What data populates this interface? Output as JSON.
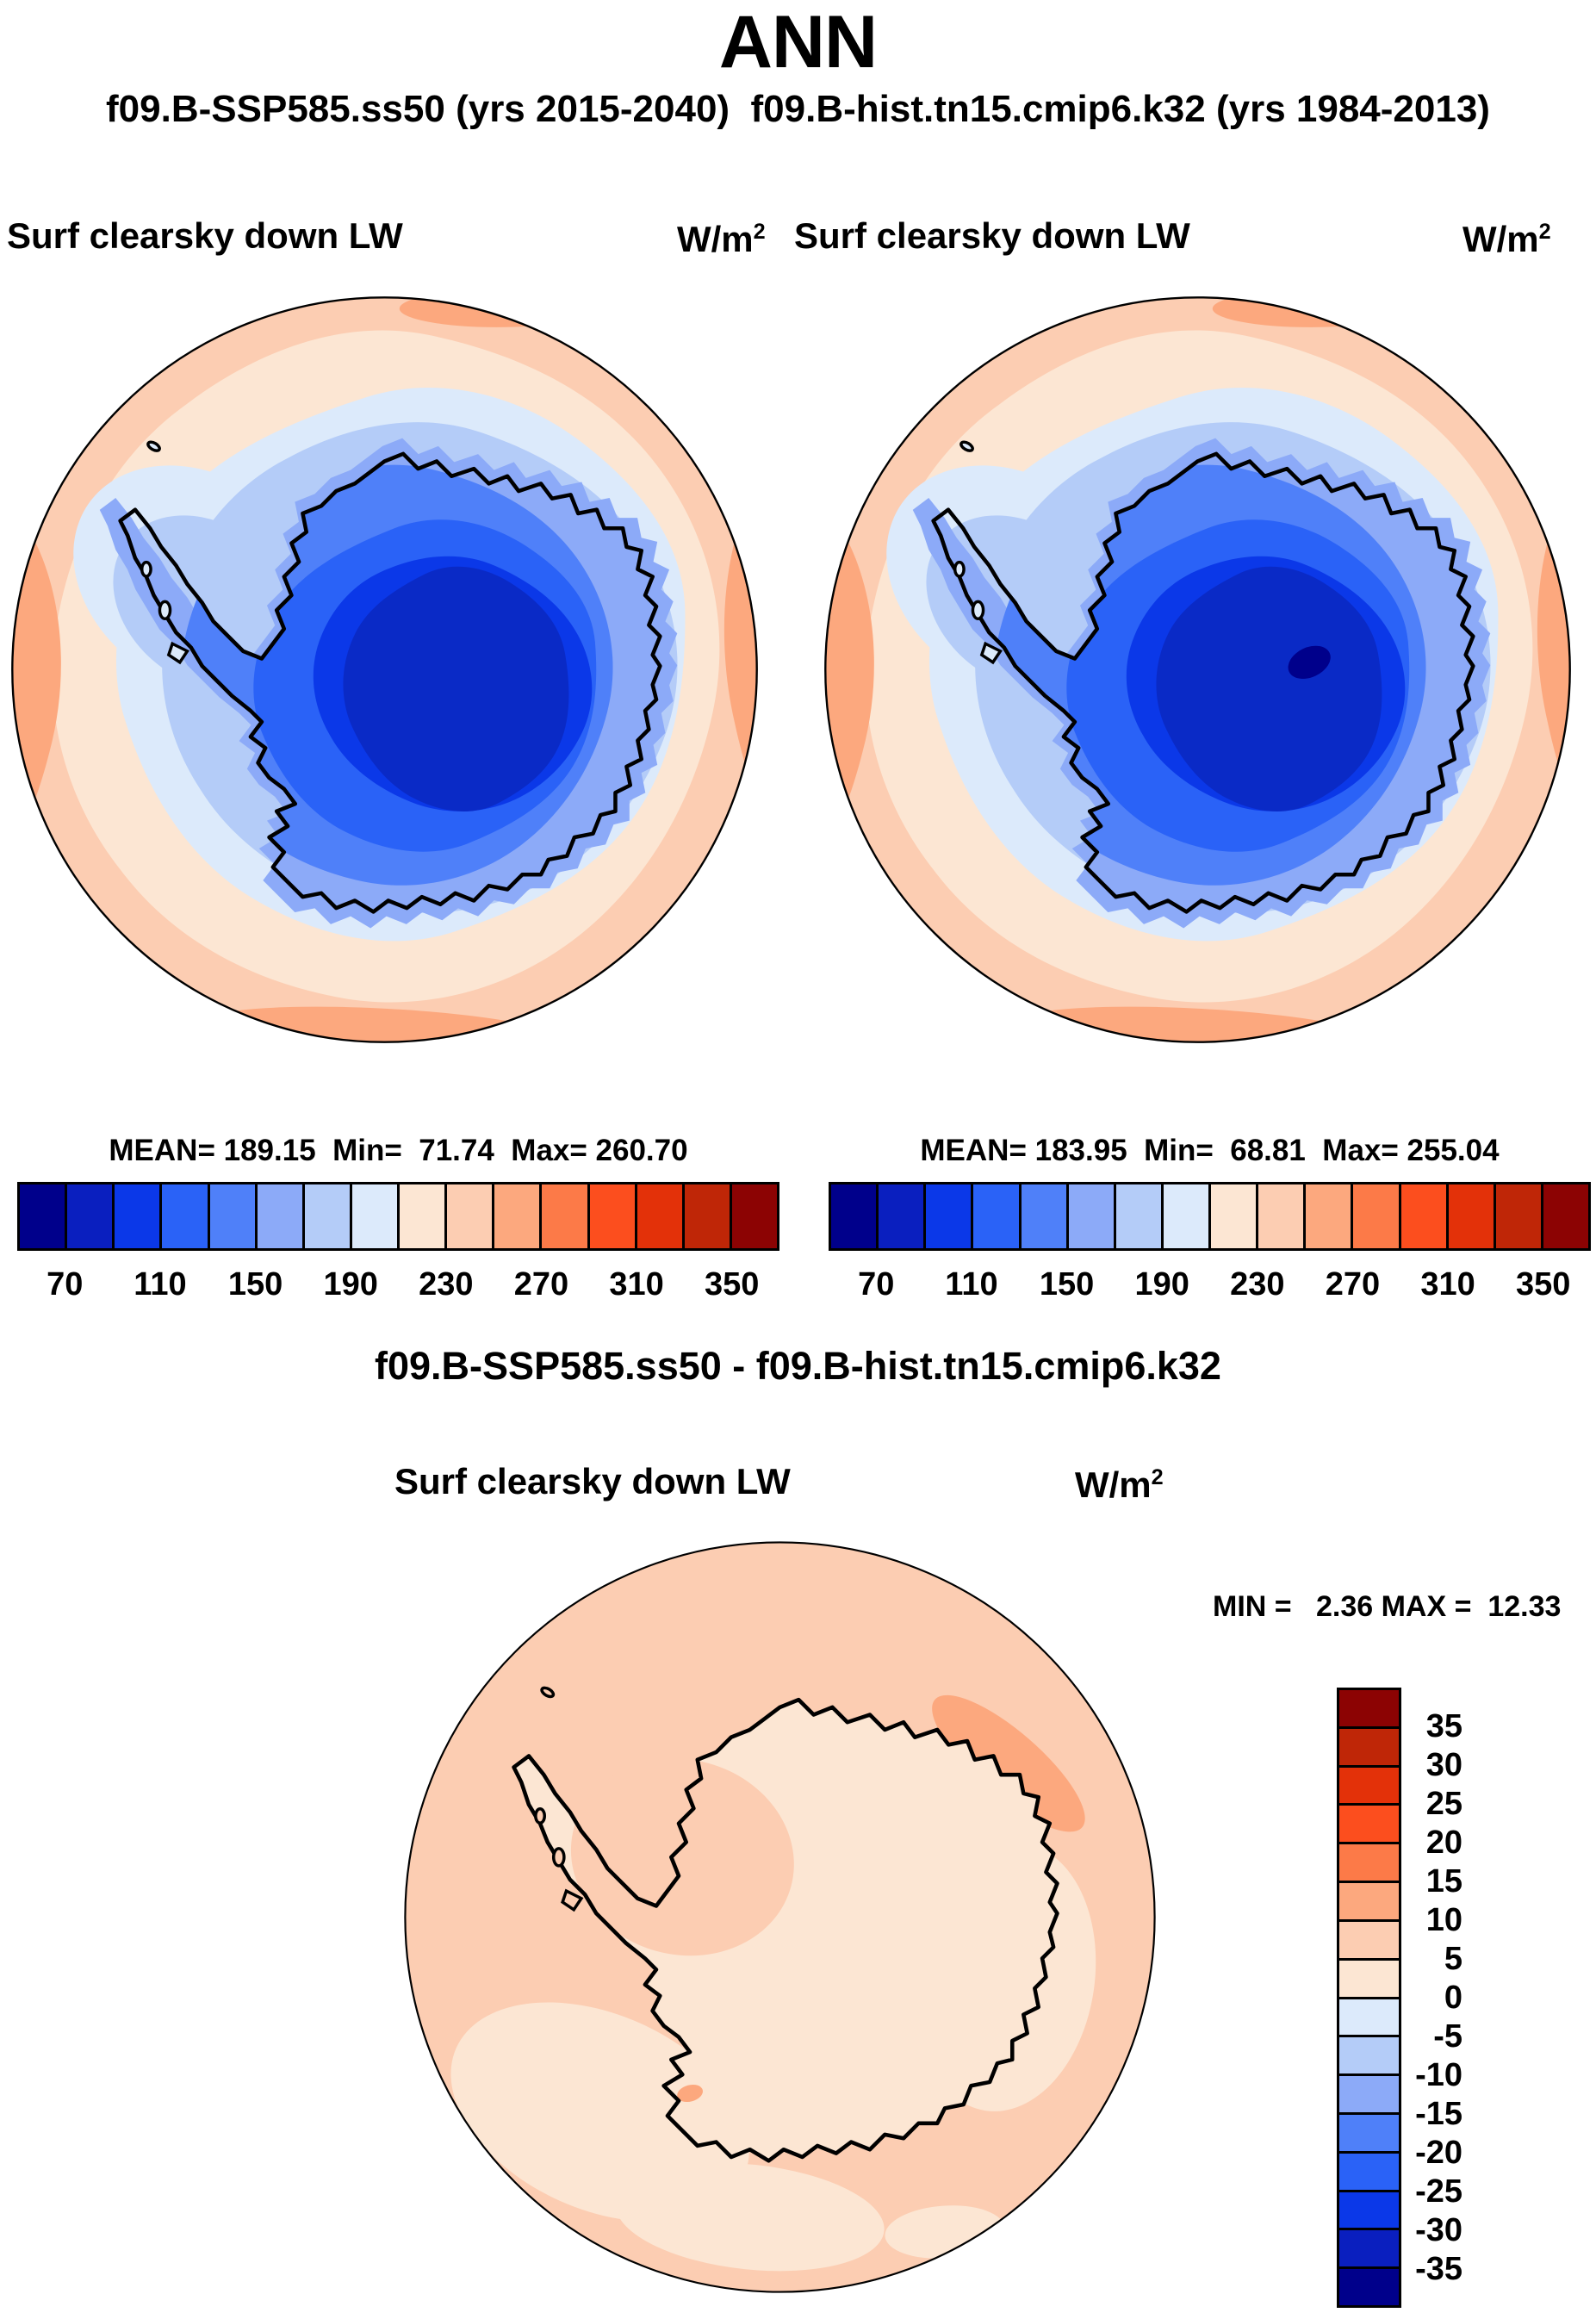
{
  "header": {
    "season": "ANN",
    "cases_line": "f09.B-SSP585.ss50 (yrs 2015-2040)  f09.B-hist.tn15.cmip6.k32 (yrs 1984-2013)"
  },
  "palette": {
    "colors": [
      "#00008B",
      "#0A1FBF",
      "#0B38E8",
      "#2A62F7",
      "#4F80F9",
      "#8CAAF8",
      "#B4CCF8",
      "#DCEAFB",
      "#FCE6D3",
      "#FCCDB2",
      "#FCA87E",
      "#FC7A48",
      "#FC4E1E",
      "#E33109",
      "#BF2607",
      "#8C0303"
    ]
  },
  "top_panels": [
    {
      "var_label": "Surf clearsky down LW",
      "units_base": "W/m",
      "units_exp": "2",
      "stats_line": "MEAN= 189.15  Min=  71.74  Max= 260.70"
    },
    {
      "var_label": "Surf clearsky down LW",
      "units_base": "W/m",
      "units_exp": "2",
      "stats_line": "MEAN= 183.95  Min=  68.81  Max= 255.04"
    }
  ],
  "top_colorbar": {
    "ticks": [
      "70",
      "110",
      "150",
      "190",
      "230",
      "270",
      "310",
      "350"
    ]
  },
  "diff_panel": {
    "title": "f09.B-SSP585.ss50 - f09.B-hist.tn15.cmip6.k32",
    "var_label": "Surf clearsky down LW",
    "units_base": "W/m",
    "units_exp": "2",
    "minmax_line": "MIN =   2.36 MAX =  12.33",
    "colorbar_labels": [
      "35",
      "30",
      "25",
      "20",
      "15",
      "10",
      "5",
      "0",
      "-5",
      "-10",
      "-15",
      "-20",
      "-25",
      "-30",
      "-35"
    ]
  },
  "chart_data": [
    {
      "type": "heatmap",
      "subtype": "south-polar-stereographic-contour-map",
      "title": "Surf clearsky down LW",
      "case": "f09.B-SSP585.ss50",
      "years": "2015-2040",
      "units": "W/m2",
      "mean": 189.15,
      "min": 71.74,
      "max": 260.7,
      "contour_levels": [
        70,
        90,
        110,
        130,
        150,
        170,
        190,
        210,
        230,
        250,
        270,
        290,
        310,
        330,
        350
      ],
      "labeled_ticks": [
        70,
        110,
        150,
        190,
        230,
        270,
        310,
        350
      ],
      "legend_position": "below",
      "description": "Low values (blue, ~70-150) over the Antarctic continent, high values (peach/orange, ~210-270) over the surrounding ocean."
    },
    {
      "type": "heatmap",
      "subtype": "south-polar-stereographic-contour-map",
      "title": "Surf clearsky down LW",
      "case": "f09.B-hist.tn15.cmip6.k32",
      "years": "1984-2013",
      "units": "W/m2",
      "mean": 183.95,
      "min": 68.81,
      "max": 255.04,
      "contour_levels": [
        70,
        90,
        110,
        130,
        150,
        170,
        190,
        210,
        230,
        250,
        270,
        290,
        310,
        330,
        350
      ],
      "labeled_ticks": [
        70,
        110,
        150,
        190,
        230,
        270,
        310,
        350
      ],
      "legend_position": "below",
      "description": "Same field for the historical case; nearly identical pattern with a slightly darker (sub-70) core spot on the East Antarctic plateau."
    },
    {
      "type": "heatmap",
      "subtype": "south-polar-stereographic-contour-map",
      "title": "Surf clearsky down LW",
      "case": "f09.B-SSP585.ss50 - f09.B-hist.tn15.cmip6.k32",
      "units": "W/m2",
      "min": 2.36,
      "max": 12.33,
      "contour_levels": [
        -35,
        -30,
        -25,
        -20,
        -15,
        -10,
        -5,
        0,
        5,
        10,
        15,
        20,
        25,
        30,
        35
      ],
      "labeled_ticks": [
        35,
        30,
        25,
        20,
        15,
        10,
        5,
        0,
        -5,
        -10,
        -15,
        -20,
        -25,
        -30,
        -35
      ],
      "legend_position": "right",
      "description": "Difference map: everywhere positive, mostly 0-5 (pale peach) over the continent and 5-10 (light salmon) over the ocean, with a 10-15 streak northeast of the continent."
    }
  ]
}
